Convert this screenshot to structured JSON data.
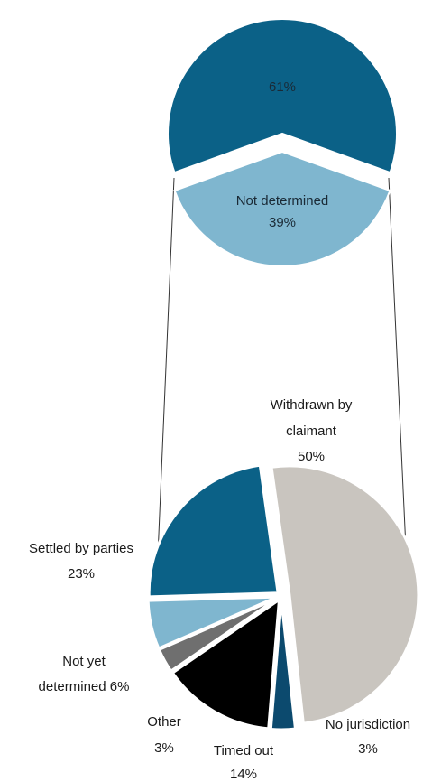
{
  "chart_data": [
    {
      "type": "pie",
      "slices": [
        {
          "name": "",
          "value": 61,
          "label": "61%",
          "color": "#0b6187",
          "exploded": true
        },
        {
          "name": "Not determined",
          "value": 39,
          "label": "39%",
          "color": "#7fb6cf",
          "exploded": true
        }
      ]
    },
    {
      "type": "pie",
      "slices": [
        {
          "name": "Withdrawn by claimant",
          "value": 50,
          "label": "50%",
          "color": "#c9c5bf"
        },
        {
          "name": "No jurisdiction",
          "value": 3,
          "label": "3%",
          "color": "#0c4a6e"
        },
        {
          "name": "Timed out",
          "value": 14,
          "label": "14%",
          "color": "#000000"
        },
        {
          "name": "Other",
          "value": 3,
          "label": "3%",
          "color": "#6f6f6f"
        },
        {
          "name": "Not yet determined",
          "value": 6,
          "label": "6%",
          "color": "#7fb6cf"
        },
        {
          "name": "Settled by parties",
          "value": 23,
          "label": "23%",
          "color": "#0b6187"
        }
      ]
    }
  ],
  "labels": {
    "top_main": "61%",
    "top_nd_line1": "Not  determined",
    "top_nd_line2": "39%",
    "withdrawn_line1": "Withdrawn by",
    "withdrawn_line2": "claimant",
    "withdrawn_line3": "50%",
    "settled_line1": "Settled by parties",
    "settled_line2": "23%",
    "notyet_line1": "Not yet",
    "notyet_line2": "determined 6%",
    "other_line1": "Other",
    "other_line2": "3%",
    "timed_line1": "Timed out",
    "timed_line2": "14%",
    "nojur_line1": "No jurisdiction",
    "nojur_line2": "3%"
  }
}
